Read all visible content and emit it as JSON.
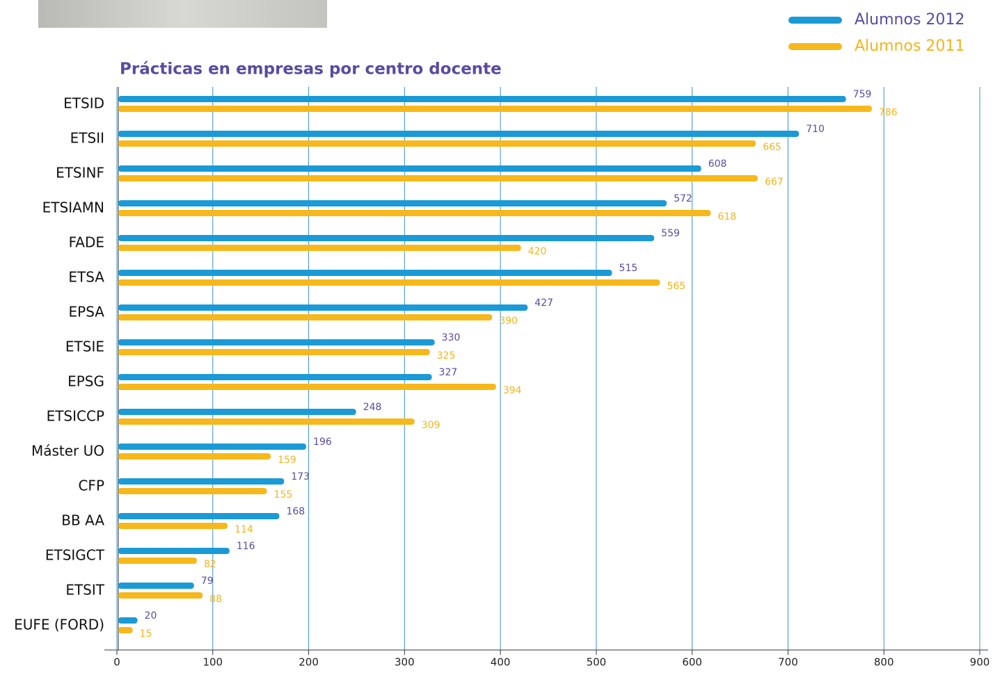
{
  "chart_data": {
    "type": "hbar",
    "title": "Prácticas en empresas por centro docente",
    "categories": [
      "ETSID",
      "ETSII",
      "ETSINF",
      "ETSIAMN",
      "FADE",
      "ETSA",
      "EPSA",
      "ETSIE",
      "EPSG",
      "ETSICCP",
      "Máster UO",
      "CFP",
      "BB AA",
      "ETSIGCT",
      "ETSIT",
      "EUFE (FORD)"
    ],
    "series": [
      {
        "name": "Alumnos 2012",
        "color": "#1a9ad6",
        "label_color": "#5a4b9e",
        "values": [
          759,
          710,
          608,
          572,
          559,
          515,
          427,
          330,
          327,
          248,
          196,
          173,
          168,
          116,
          79,
          20
        ]
      },
      {
        "name": "Alumnos 2011",
        "color": "#f6b81a",
        "label_color": "#f1b51c",
        "values": [
          786,
          665,
          667,
          618,
          420,
          565,
          390,
          325,
          394,
          309,
          159,
          155,
          114,
          82,
          88,
          15
        ]
      }
    ],
    "xlim": [
      0,
      900
    ],
    "xticks": [
      0,
      100,
      200,
      300,
      400,
      500,
      600,
      700,
      800,
      900
    ],
    "grid": true,
    "legend": "top-right"
  }
}
